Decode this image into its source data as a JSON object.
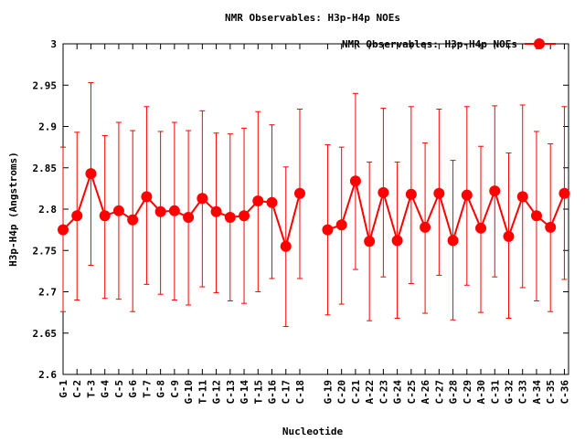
{
  "chart_data": {
    "type": "line",
    "title": "NMR Observables: H3p-H4p NOEs",
    "xlabel": "Nucleotide",
    "ylabel": "H3p-H4p (Angstroms)",
    "ylim": [
      2.6,
      3.0
    ],
    "yticks": [
      "2.6",
      "2.65",
      "2.7",
      "2.75",
      "2.8",
      "2.85",
      "2.9",
      "2.95",
      "3"
    ],
    "legend": {
      "label": "NMR Observables: H3p-H4p NOEs",
      "position": "top-right"
    },
    "grid": false,
    "series_color": "#ff0000",
    "categories": [
      "G-1",
      "C-2",
      "T-3",
      "G-4",
      "C-5",
      "G-6",
      "T-7",
      "G-8",
      "C-9",
      "G-10",
      "T-11",
      "G-12",
      "C-13",
      "G-14",
      "T-15",
      "G-16",
      "C-17",
      "C-18",
      "G-19",
      "C-20",
      "C-21",
      "A-22",
      "C-23",
      "G-24",
      "C-25",
      "A-26",
      "C-27",
      "G-28",
      "C-29",
      "A-30",
      "C-31",
      "G-32",
      "C-33",
      "A-34",
      "C-35",
      "C-36"
    ],
    "x": [
      1,
      2,
      3,
      4,
      5,
      6,
      7,
      8,
      9,
      10,
      11,
      12,
      13,
      14,
      15,
      16,
      17,
      18,
      20,
      21,
      22,
      23,
      24,
      25,
      26,
      27,
      28,
      29,
      30,
      31,
      32,
      33,
      34,
      35,
      36,
      37
    ],
    "values": [
      2.775,
      2.792,
      2.843,
      2.792,
      2.798,
      2.787,
      2.815,
      2.797,
      2.798,
      2.79,
      2.813,
      2.797,
      2.79,
      2.792,
      2.81,
      2.808,
      2.755,
      2.819,
      2.775,
      2.781,
      2.834,
      2.761,
      2.82,
      2.762,
      2.818,
      2.778,
      2.819,
      2.762,
      2.817,
      2.777,
      2.822,
      2.767,
      2.815,
      2.792,
      2.778,
      2.819
    ],
    "err_low": [
      2.676,
      2.69,
      2.732,
      2.692,
      2.691,
      2.676,
      2.709,
      2.697,
      2.69,
      2.684,
      2.706,
      2.699,
      2.689,
      2.686,
      2.7,
      2.716,
      2.658,
      2.716,
      2.672,
      2.685,
      2.727,
      2.665,
      2.718,
      2.668,
      2.71,
      2.674,
      2.72,
      2.666,
      2.708,
      2.675,
      2.718,
      2.668,
      2.705,
      2.689,
      2.676,
      2.715
    ],
    "err_high": [
      2.875,
      2.893,
      2.953,
      2.889,
      2.905,
      2.895,
      2.924,
      2.894,
      2.905,
      2.895,
      2.919,
      2.892,
      2.891,
      2.898,
      2.918,
      2.902,
      2.851,
      2.921,
      2.878,
      2.875,
      2.94,
      2.857,
      2.922,
      2.857,
      2.924,
      2.88,
      2.921,
      2.859,
      2.924,
      2.876,
      2.925,
      2.868,
      2.926,
      2.894,
      2.879,
      2.924
    ]
  }
}
